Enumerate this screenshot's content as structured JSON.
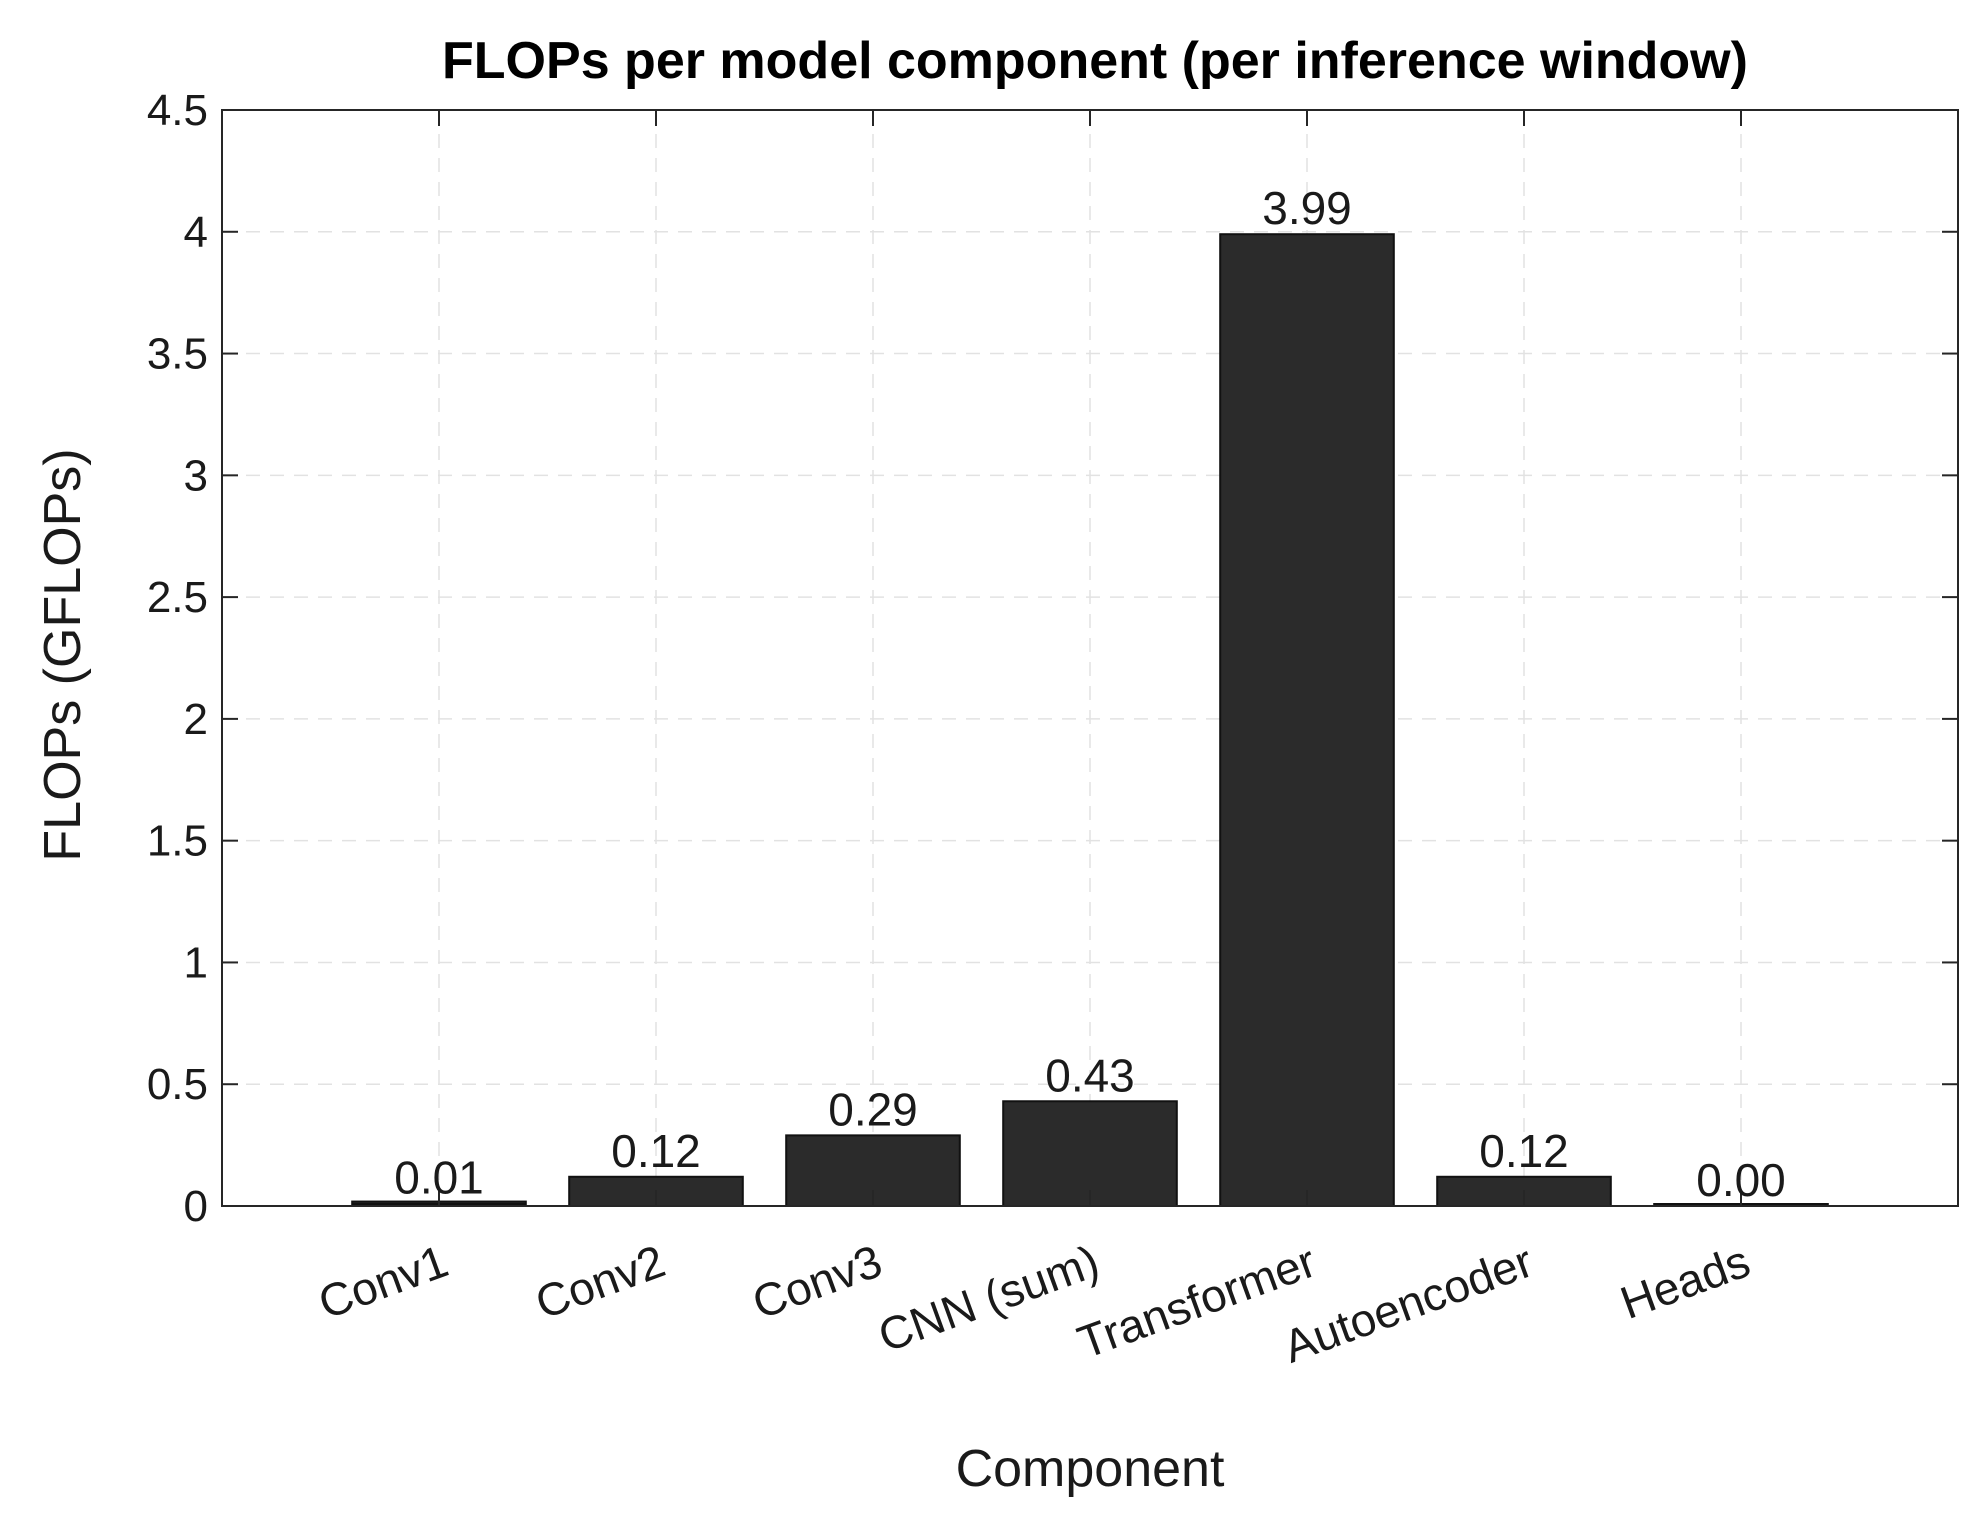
{
  "chart_data": {
    "type": "bar",
    "title": "FLOPs per model component (per inference window)",
    "xlabel": "Component",
    "ylabel": "FLOPs (GFLOPs)",
    "categories": [
      "Conv1",
      "Conv2",
      "Conv3",
      "CNN (sum)",
      "Transformer",
      "Autoencoder",
      "Heads"
    ],
    "values": [
      0.01,
      0.12,
      0.29,
      0.43,
      3.99,
      0.12,
      0.0
    ],
    "data_labels": [
      "0.01",
      "0.12",
      "0.29",
      "0.43",
      "3.99",
      "0.12",
      "0.00"
    ],
    "ylim": [
      0,
      4.5
    ],
    "yticks": [
      "0",
      "0.5",
      "1",
      "1.5",
      "2",
      "2.5",
      "3",
      "3.5",
      "4",
      "4.5"
    ],
    "grid": true,
    "bar_color": "#2b2b2b",
    "xlim": [
      0,
      8
    ]
  }
}
